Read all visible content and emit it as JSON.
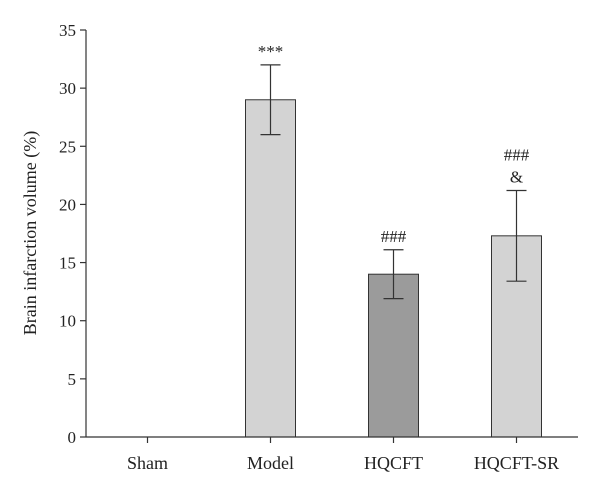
{
  "chart_data": {
    "type": "bar",
    "title": "",
    "xlabel": "",
    "ylabel": "Brain infarction volume (%)",
    "ylim": [
      0,
      35
    ],
    "yticks": [
      0,
      5,
      10,
      15,
      20,
      25,
      30,
      35
    ],
    "grid": false,
    "categories": [
      "Sham",
      "Model",
      "HQCFT",
      "HQCFT-SR"
    ],
    "values": [
      0,
      29,
      14,
      17.3
    ],
    "errors": [
      0,
      3,
      2.1,
      3.9
    ],
    "annotations": [
      [],
      [
        "***"
      ],
      [
        "###"
      ],
      [
        "###",
        "&"
      ]
    ],
    "colors": [
      "#d3d3d3",
      "#d3d3d3",
      "#9b9b9b",
      "#d3d3d3"
    ]
  }
}
